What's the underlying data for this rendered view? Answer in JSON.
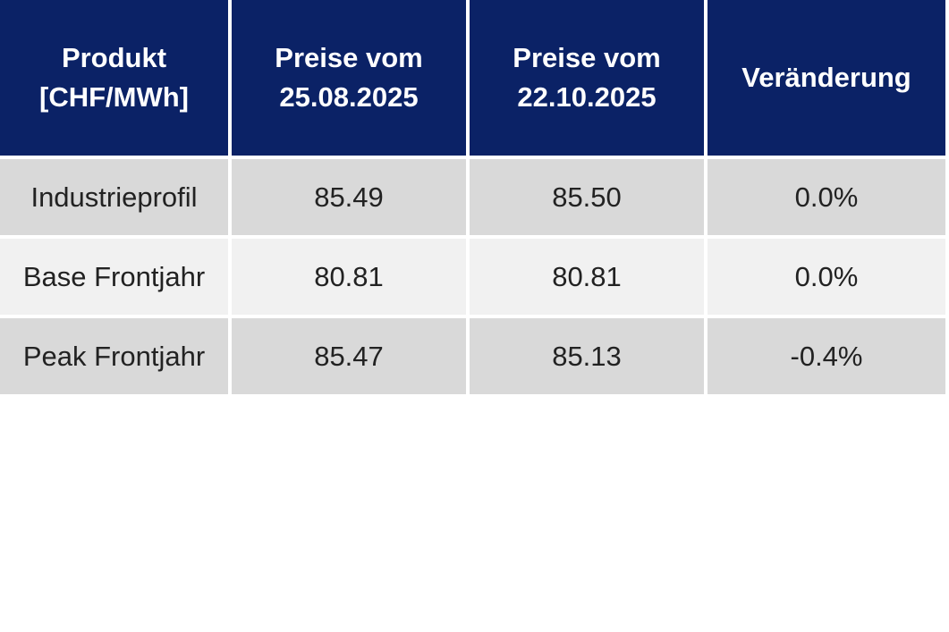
{
  "table": {
    "header": [
      [
        "Produkt",
        "[CHF/MWh]"
      ],
      [
        "Preise vom",
        "25.08.2025"
      ],
      [
        "Preise vom",
        "22.10.2025"
      ],
      [
        "Veränderung"
      ]
    ],
    "rows": [
      [
        "Industrieprofil",
        "85.49",
        "85.50",
        "0.0%"
      ],
      [
        "Base Frontjahr",
        "80.81",
        "80.81",
        "0.0%"
      ],
      [
        "Peak Frontjahr",
        "85.47",
        "85.13",
        "-0.4%"
      ]
    ]
  }
}
